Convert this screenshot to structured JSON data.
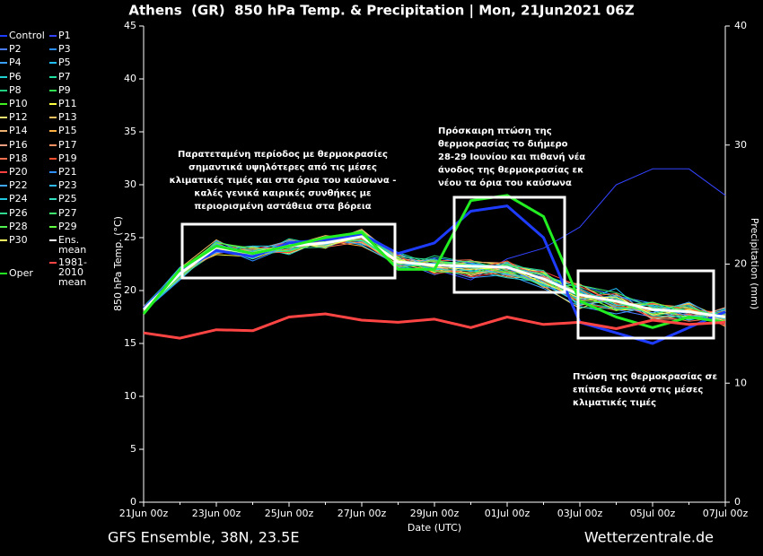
{
  "chart_data": {
    "type": "line",
    "title": "Athens  (GR)  850 hPa Temp. & Precipitation | Mon, 21Jun2021 06Z",
    "ylabel": "850 hPa Temp. (°C)",
    "y2label": "Precipitation (mm)",
    "xlabel": "Date (UTC)",
    "source_left": "GFS Ensemble, 38N, 23.5E",
    "source_right": "Wetterzentrale.de",
    "categories": [
      "21Jun 00z",
      null,
      "23Jun 00z",
      null,
      "25Jun 00z",
      null,
      "27Jun 00z",
      null,
      "29Jun 00z",
      null,
      "01Jul 00z",
      null,
      "03Jul 00z",
      null,
      "05Jul 00z",
      null,
      "07Jul 00z"
    ],
    "ylim": [
      0,
      45
    ],
    "yticks": [
      0,
      5,
      10,
      15,
      20,
      25,
      30,
      35,
      40,
      45
    ],
    "y2lim": [
      0,
      40
    ],
    "y2ticks": [
      0,
      10,
      20,
      30,
      40
    ],
    "annotations": [
      {
        "lines": [
          "Παρατεταμένη περίοδος με θερμοκρασίες",
          "σημαντικά υψηλότερες από τις μέσες",
          "κλιματικές τιμές και στα όρια του καύσωνα -",
          "καλές γενικά καιρικές συνθήκες με",
          "περιορισμένη αστάθεια στα βόρεια"
        ]
      },
      {
        "lines": [
          "Πρόσκαιρη πτώση της",
          "θερμοκρασίας το διήμερο",
          "28-29 Ιουνίου και πιθανή νέα",
          "άνοδος της θερμοκρασίας εκ",
          "νέου τα όρια του καύσωνα"
        ]
      },
      {
        "lines": [
          "Πτώση της θερμοκρασίας σε",
          "επίπεδα κοντά στις μέσες",
          "κλιματικές τιμές"
        ]
      }
    ],
    "series": [
      {
        "name": "Control",
        "color": "#1e3cff",
        "values": [
          18.3,
          21.8,
          23.8,
          23.2,
          24.5,
          24.8,
          25.3,
          23.5,
          24.5,
          27.5,
          28,
          25,
          17,
          16,
          15,
          16.5,
          18
        ]
      },
      {
        "name": "P1",
        "color": "#3344ff",
        "values": [
          18.1,
          21.2,
          24.5,
          23,
          24.8,
          24,
          25.5,
          23,
          22,
          21,
          23,
          24,
          26,
          30,
          31.5,
          31.5,
          29
        ]
      },
      {
        "name": "P2",
        "color": "#4a7bff",
        "values": [
          18.4,
          21.9,
          23.5,
          24,
          23.6,
          25,
          24.6,
          22.8,
          21.5,
          22.5,
          21.8,
          20.5,
          19,
          18.2,
          17.5,
          18.5,
          16.8
        ]
      },
      {
        "name": "P3",
        "color": "#2a8cff",
        "values": [
          18,
          21,
          24.2,
          22.8,
          24.2,
          24.3,
          25.2,
          22,
          23,
          21.8,
          22.5,
          21.3,
          20.5,
          19.5,
          18.8,
          17.2,
          17.9
        ]
      },
      {
        "name": "P4",
        "color": "#3aa0ff",
        "values": [
          18.3,
          22.2,
          23.7,
          23.9,
          23.8,
          24.7,
          24.4,
          23.2,
          22.2,
          21.2,
          21.5,
          20.2,
          18.5,
          17.8,
          18.5,
          17.8,
          17
        ]
      },
      {
        "name": "P5",
        "color": "#20c0ff",
        "values": [
          18.2,
          21.6,
          24.4,
          23.3,
          24.5,
          24.1,
          25.6,
          22.6,
          22.8,
          22.5,
          22.3,
          21.8,
          19,
          20.2,
          17.2,
          18.2,
          17.6
        ]
      },
      {
        "name": "P6",
        "color": "#20d0d0",
        "values": [
          17.9,
          21.4,
          23.9,
          24.2,
          23.4,
          24.9,
          24.8,
          22.3,
          21.8,
          21.9,
          21.2,
          20.8,
          20,
          18.6,
          18.9,
          17.5,
          18.3
        ]
      },
      {
        "name": "P7",
        "color": "#20e0a0",
        "values": [
          18.5,
          22,
          24.1,
          23.1,
          24.9,
          24.2,
          25.1,
          23.6,
          22.4,
          22.2,
          22.7,
          21.5,
          19.8,
          19.2,
          17.8,
          18.6,
          16.9
        ]
      },
      {
        "name": "P8",
        "color": "#20d080",
        "values": [
          18,
          21.3,
          23.6,
          23.7,
          24.1,
          24.6,
          24.9,
          22.1,
          23.3,
          22.6,
          22.1,
          20.6,
          18.8,
          18.4,
          18.3,
          17.9,
          17.4
        ]
      },
      {
        "name": "P9",
        "color": "#30e050",
        "values": [
          18.3,
          21.7,
          24.3,
          23.4,
          23.7,
          25.1,
          25.4,
          22.9,
          22.1,
          21.6,
          21.9,
          21.2,
          20.3,
          19.4,
          17.6,
          18.1,
          17.8
        ]
      },
      {
        "name": "P10",
        "color": "#40f020",
        "values": [
          18.1,
          21.5,
          24.6,
          23.6,
          24.4,
          24.4,
          25,
          22.4,
          22.6,
          22.3,
          21.6,
          20.9,
          19.3,
          18.9,
          18.6,
          17.4,
          17.1
        ]
      },
      {
        "name": "P11",
        "color": "#ffff40",
        "values": [
          18.2,
          21.9,
          23.4,
          23.2,
          24.6,
          24,
          25.7,
          23.1,
          21.7,
          22.8,
          22.4,
          21.7,
          19.6,
          18.2,
          18.1,
          18.8,
          17.3
        ]
      },
      {
        "name": "P12",
        "color": "#f0e070",
        "values": [
          18.4,
          21.1,
          24,
          24.1,
          23.5,
          24.8,
          24.5,
          22.7,
          22.9,
          21.4,
          22.2,
          20.4,
          18.3,
          19.6,
          17.4,
          17.6,
          18.1
        ]
      },
      {
        "name": "P13",
        "color": "#f0c060",
        "values": [
          17.8,
          22.1,
          24.8,
          23,
          24.2,
          25.2,
          24.7,
          22.2,
          22.5,
          22.1,
          21.3,
          21.1,
          20.6,
          18.7,
          18.7,
          18.4,
          16.6
        ]
      },
      {
        "name": "P14",
        "color": "#f0b070",
        "values": [
          18.3,
          21.4,
          23.8,
          23.8,
          24.7,
          24.3,
          25.3,
          23.4,
          22.3,
          22.7,
          22.6,
          21.4,
          19.1,
          19.1,
          17.9,
          17.7,
          17.7
        ]
      },
      {
        "name": "P15",
        "color": "#ffb040",
        "values": [
          18,
          21.8,
          24.1,
          23.5,
          23.9,
          24.7,
          24.2,
          22.5,
          21.9,
          21.7,
          21.7,
          20.7,
          19.7,
          18.5,
          18.4,
          18.3,
          17.2
        ]
      },
      {
        "name": "P16",
        "color": "#f0a080",
        "values": [
          18.5,
          21.2,
          24.3,
          23.3,
          24.3,
          24.5,
          25.8,
          23,
          22.7,
          22.4,
          22,
          21.6,
          18.6,
          19.3,
          17.3,
          17.3,
          18.4
        ]
      },
      {
        "name": "P17",
        "color": "#ff9060",
        "values": [
          18.2,
          21.6,
          23.5,
          24,
          24,
          25,
          25.1,
          22.8,
          22.2,
          21.5,
          22.3,
          20.3,
          20.1,
          18.3,
          18.2,
          18.7,
          16.8
        ]
      },
      {
        "name": "P18",
        "color": "#ff7050",
        "values": [
          18.1,
          22,
          24.5,
          23.1,
          24.8,
          24.1,
          24.6,
          22.3,
          22.8,
          22.9,
          21.4,
          21.3,
          19.4,
          19.7,
          17.7,
          17.1,
          17.5
        ]
      },
      {
        "name": "P19",
        "color": "#ff5030",
        "values": [
          18.3,
          21.5,
          23.9,
          23.6,
          23.6,
          24.9,
          25.4,
          23.3,
          21.6,
          22,
          22.8,
          20.9,
          18.9,
          18.1,
          18.8,
          18.2,
          17.9
        ]
      },
      {
        "name": "P20",
        "color": "#ff4040",
        "values": [
          18,
          21.7,
          24.2,
          23.9,
          24.5,
          24.2,
          24.9,
          22.6,
          22.4,
          21.3,
          21.8,
          21.8,
          20.4,
          18.8,
          17.5,
          17.8,
          16.7
        ]
      },
      {
        "name": "P21",
        "color": "#3090ff",
        "values": [
          18.4,
          21.3,
          24.7,
          23.2,
          24.1,
          24.6,
          25.2,
          22.1,
          23.1,
          22.6,
          22.1,
          20.5,
          19.2,
          19.5,
          18.5,
          17.6,
          17.6
        ]
      },
      {
        "name": "P22",
        "color": "#40a8ff",
        "values": [
          18.2,
          22.1,
          23.6,
          23.7,
          24.7,
          24.4,
          25.5,
          23.5,
          22.1,
          22.2,
          21.5,
          21.2,
          19.9,
          18.4,
          17.9,
          18.9,
          17
        ]
      },
      {
        "name": "P23",
        "color": "#30b8f0",
        "values": [
          17.9,
          21.4,
          24.4,
          23.4,
          23.8,
          25.1,
          24.3,
          22.4,
          22.6,
          21.8,
          22.6,
          20.8,
          18.7,
          19,
          18.1,
          17.2,
          18.2
        ]
      },
      {
        "name": "P24",
        "color": "#20c8e0",
        "values": [
          18.3,
          21.9,
          23.7,
          24.2,
          24.2,
          24.3,
          25.6,
          22.9,
          22.3,
          22.5,
          22.2,
          21.5,
          20.2,
          18.6,
          18.6,
          18.1,
          17.3
        ]
      },
      {
        "name": "P25",
        "color": "#30e0c0",
        "values": [
          18.1,
          21.1,
          24,
          23,
          24.6,
          24.8,
          24.7,
          22.7,
          22,
          21.9,
          21.6,
          20.6,
          19.5,
          19.3,
          17.6,
          17.5,
          17.8
        ]
      },
      {
        "name": "P26",
        "color": "#30d890",
        "values": [
          18.4,
          21.8,
          24.6,
          23.8,
          24,
          24.1,
          25.3,
          23.2,
          22.9,
          22.1,
          22.4,
          21.9,
          18.4,
          18.3,
          18.3,
          18.6,
          16.9
        ]
      },
      {
        "name": "P27",
        "color": "#40e870",
        "values": [
          18,
          21.6,
          23.8,
          23.5,
          24.3,
          25,
          25,
          22.2,
          22.5,
          22.8,
          21.9,
          20.4,
          20.5,
          19.8,
          18.4,
          17.3,
          18
        ]
      },
      {
        "name": "P28",
        "color": "#50f050",
        "values": [
          18.2,
          21.3,
          24.2,
          23.1,
          24.5,
          24.5,
          24.8,
          23,
          21.8,
          21.6,
          22.5,
          21,
          19,
          18.9,
          17.8,
          18.4,
          17.4
        ]
      },
      {
        "name": "P29",
        "color": "#60ff40",
        "values": [
          18.3,
          22,
          24.5,
          24,
          23.7,
          24.7,
          25.7,
          22.5,
          22.8,
          22.4,
          21.7,
          21.6,
          19.8,
          18.1,
          18.9,
          17.9,
          17.6
        ]
      },
      {
        "name": "P30",
        "color": "#ffff60",
        "values": [
          18.1,
          21.5,
          23.9,
          23.6,
          24.4,
          24.2,
          25.1,
          22.9,
          22.2,
          22,
          22.2,
          20.7,
          19.3,
          19.4,
          17.7,
          18.2,
          17.1
        ]
      },
      {
        "name": "Ens. mean",
        "color": "#ffffff",
        "values": [
          18.2,
          21.6,
          24.1,
          23.5,
          24.2,
          24.5,
          25.1,
          22.7,
          22.4,
          22.3,
          22.2,
          21.1,
          19.6,
          19,
          18.2,
          18,
          17.5
        ]
      },
      {
        "name": "Oper",
        "color": "#22ee22",
        "values": [
          17.8,
          22,
          24.2,
          23.5,
          24.2,
          25,
          25.5,
          22,
          22,
          28.5,
          29,
          27,
          19,
          17.5,
          16.5,
          17.5,
          17
        ]
      },
      {
        "name": "1981-2010 mean",
        "color": "#ff4444",
        "values": [
          16,
          15.5,
          16.3,
          16.2,
          17.5,
          17.8,
          17.2,
          17,
          17.3,
          16.5,
          17.5,
          16.8,
          17,
          16.4,
          17.2,
          16.8,
          17
        ]
      }
    ]
  }
}
